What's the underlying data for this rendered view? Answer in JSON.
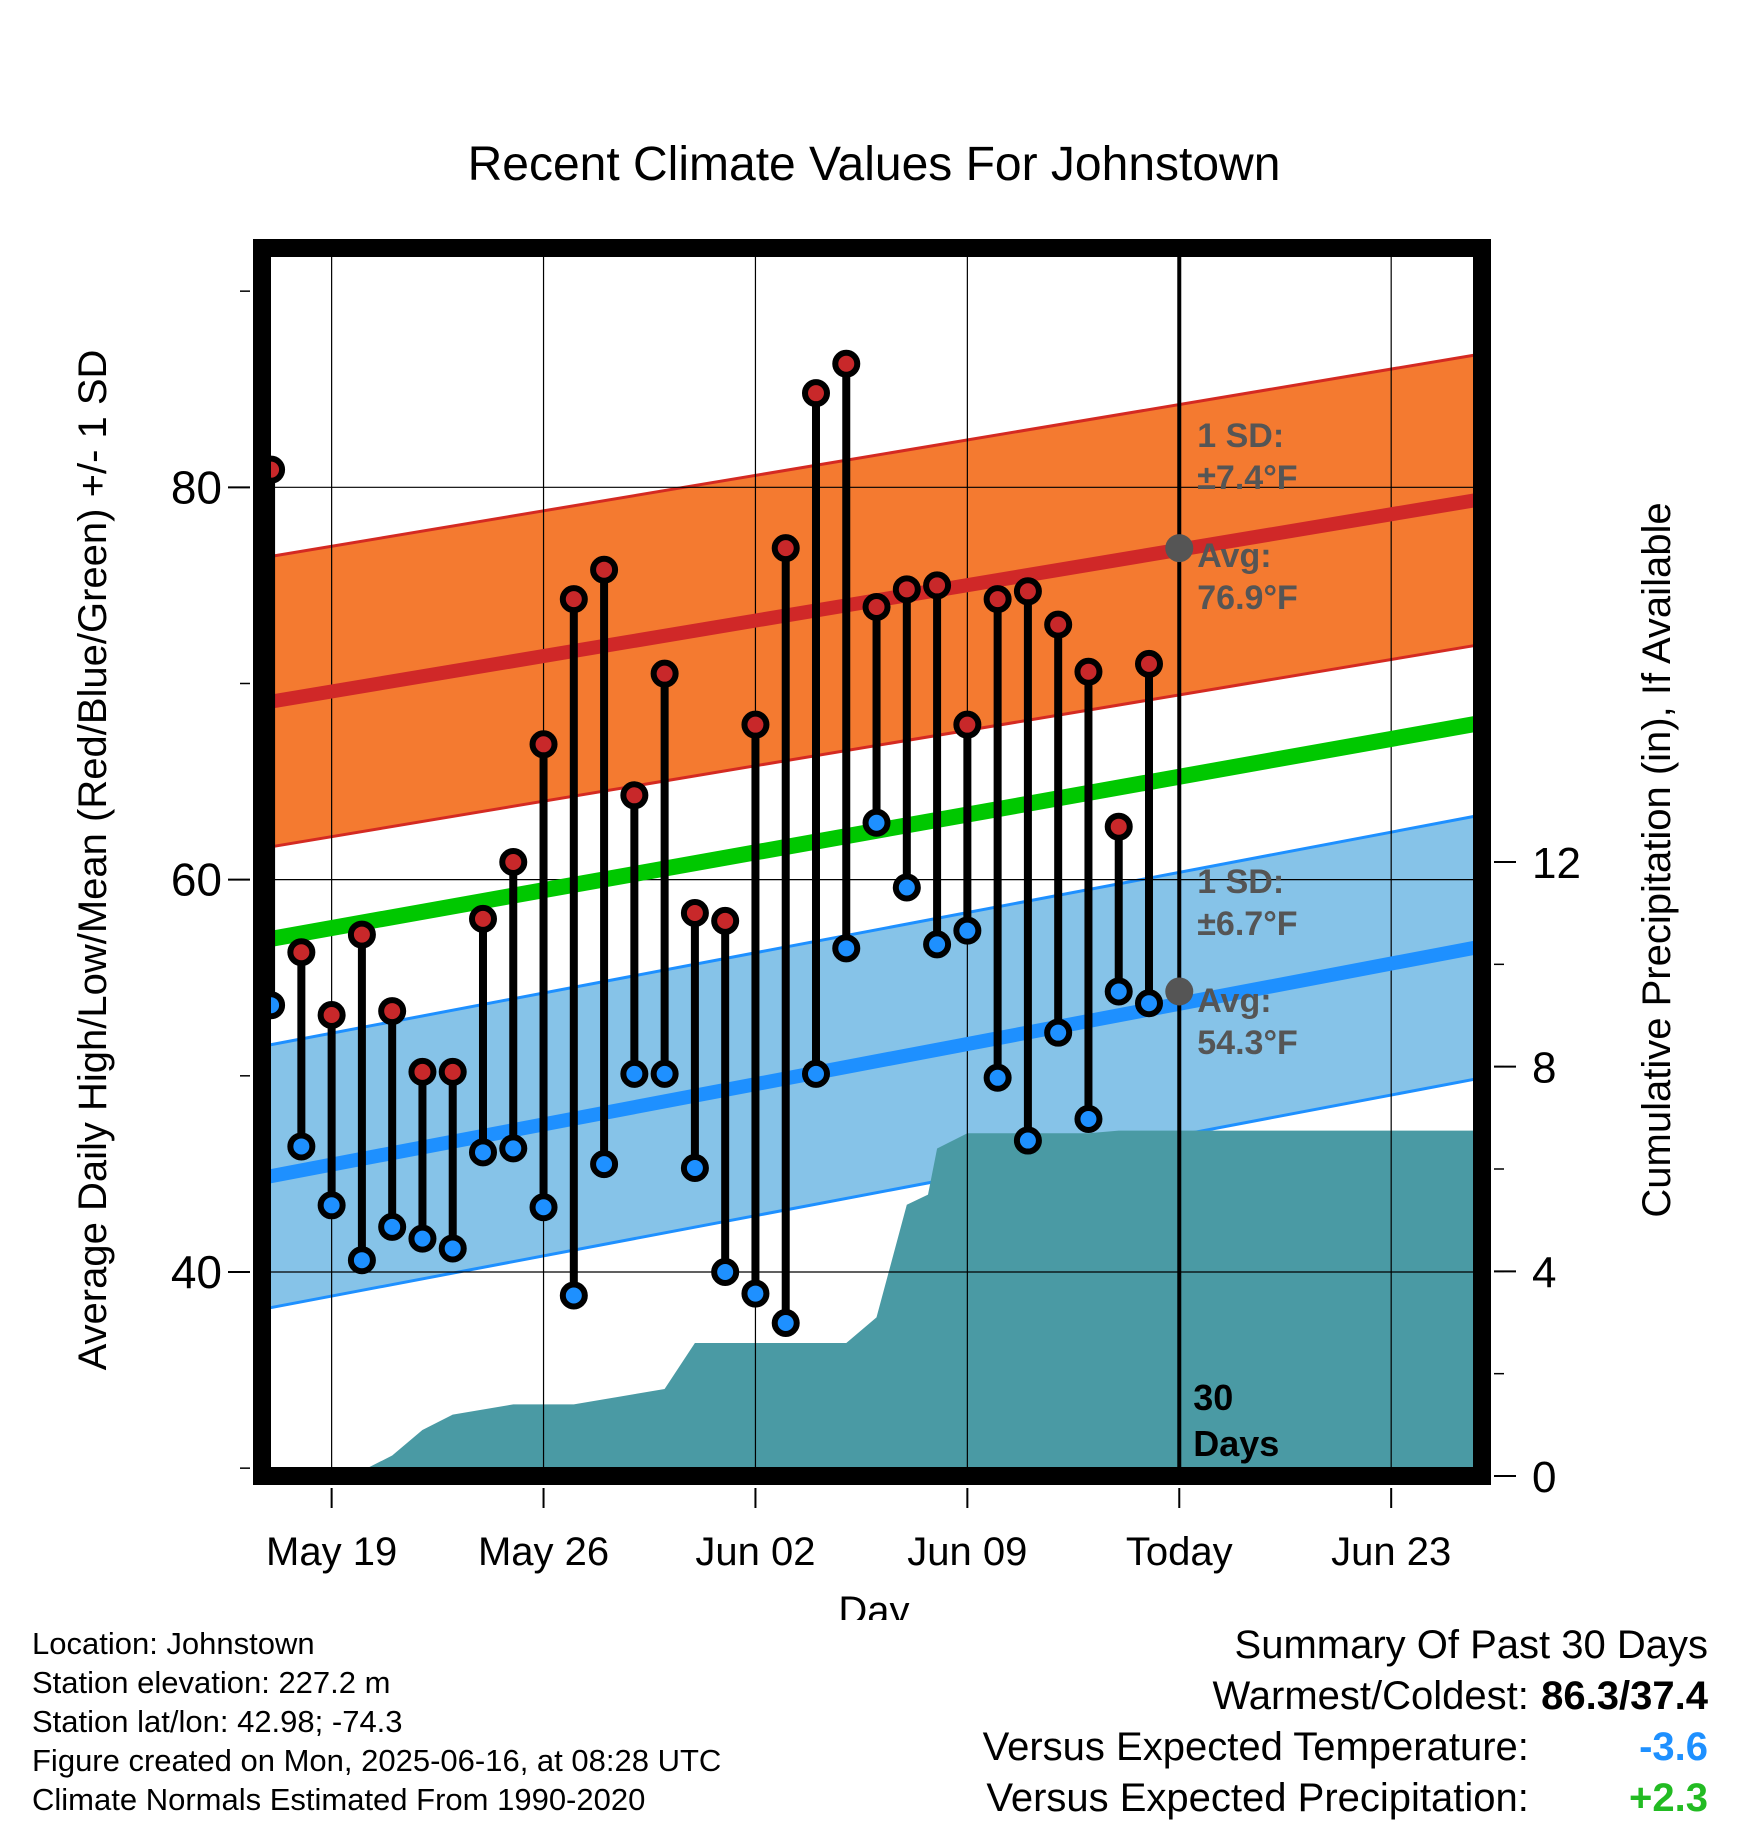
{
  "chart_data": {
    "type": "line",
    "title": "Recent Climate Values For Johnstown",
    "xlabel": "Day",
    "ylabel": "Average Daily High/Low/Mean (Red/Blue/Green) +/- 1 SD",
    "y2label": "Cumulative Precipitation (in), If Available",
    "ylim": [
      29.6,
      92.2
    ],
    "y2lim": [
      0,
      24
    ],
    "y_ticks": [
      "40",
      "60",
      "80"
    ],
    "y2_ticks": [
      "0",
      "4",
      "8",
      "12"
    ],
    "x_ticks": [
      "May 19",
      "May 26",
      "Jun 02",
      "Jun 09",
      "Today",
      "Jun 23"
    ],
    "x_range_days": [
      -30.3,
      10
    ],
    "grid": true,
    "days": [
      -30,
      -29,
      -28,
      -27,
      -26,
      -25,
      -24,
      -23,
      -22,
      -21,
      -20,
      -19,
      -18,
      -17,
      -16,
      -15,
      -14,
      -13,
      -12,
      -11,
      -10,
      -9,
      -8,
      -7,
      -6,
      -5,
      -4,
      -3,
      -2,
      -1
    ],
    "series": [
      {
        "name": "High",
        "color": "#c8282a",
        "values": [
          80.9,
          56.3,
          53.1,
          57.2,
          53.3,
          50.2,
          50.2,
          58.0,
          60.9,
          66.9,
          74.3,
          75.8,
          64.3,
          70.5,
          58.3,
          57.9,
          67.9,
          76.9,
          84.8,
          86.3,
          73.9,
          74.8,
          75.0,
          67.9,
          74.3,
          74.7,
          73.0,
          70.6,
          62.7,
          71.0
        ]
      },
      {
        "name": "Low",
        "color": "#1e90ff",
        "values": [
          53.6,
          46.4,
          43.4,
          40.6,
          42.3,
          41.7,
          41.2,
          46.1,
          46.3,
          43.3,
          38.8,
          45.5,
          50.1,
          50.1,
          45.3,
          40.0,
          38.9,
          37.4,
          50.1,
          56.5,
          62.9,
          59.6,
          56.7,
          57.4,
          49.9,
          46.7,
          52.2,
          47.8,
          54.3,
          53.7
        ]
      }
    ],
    "normals": {
      "high_avg": {
        "start": 69.0,
        "end": 79.4
      },
      "high_sd": 7.4,
      "low_avg": {
        "start": 44.8,
        "end": 56.6
      },
      "low_sd": 6.7,
      "mean_avg": {
        "start": 56.9,
        "end": 68.0
      }
    },
    "precip_cumulative": {
      "days": [
        -33,
        -28.5,
        -27,
        -26,
        -25,
        -24,
        -23,
        -22,
        -21,
        -20,
        -19,
        -18,
        -17,
        -16,
        -15,
        -14,
        -13,
        -12,
        -11,
        -10,
        -9,
        -8.3,
        -8,
        -7,
        -6,
        -5,
        -4,
        -3,
        -2,
        -1,
        0,
        10
      ],
      "values": [
        0,
        0,
        0.1,
        0.4,
        0.9,
        1.2,
        1.3,
        1.4,
        1.4,
        1.4,
        1.5,
        1.6,
        1.7,
        2.6,
        2.6,
        2.6,
        2.6,
        2.6,
        2.6,
        3.1,
        5.3,
        5.5,
        6.4,
        6.7,
        6.7,
        6.7,
        6.7,
        6.7,
        6.75,
        6.75,
        6.75,
        6.75
      ],
      "color": "#4a9aa4"
    },
    "annotations": {
      "high_sd": [
        "1 SD:",
        "±7.4°F"
      ],
      "high_avg": [
        "Avg:",
        "76.9°F"
      ],
      "low_sd": [
        "1 SD:",
        "±6.7°F"
      ],
      "low_avg": [
        "Avg:",
        "54.3°F"
      ],
      "days_label": [
        "30",
        "Days"
      ],
      "high_today": 76.9,
      "low_today": 54.3
    }
  },
  "info": {
    "location": "Location: Johnstown",
    "elevation": "Station elevation: 227.2 m",
    "latlon": "Station lat/lon: 42.98; -74.3",
    "created": "Figure created on Mon, 2025-06-16, at 08:28 UTC",
    "normals": "Climate Normals Estimated From 1990-2020"
  },
  "summary": {
    "title": "Summary Of Past 30 Days",
    "warm_cold_label": "Warmest/Coldest:",
    "warm_cold_value": "86.3/37.4",
    "temp_label": "Versus Expected Temperature:",
    "temp_value": "-3.6",
    "temp_color": "#1e90ff",
    "precip_label": "Versus Expected Precipitation:",
    "precip_value": "+2.3",
    "precip_color": "#22bb22"
  }
}
